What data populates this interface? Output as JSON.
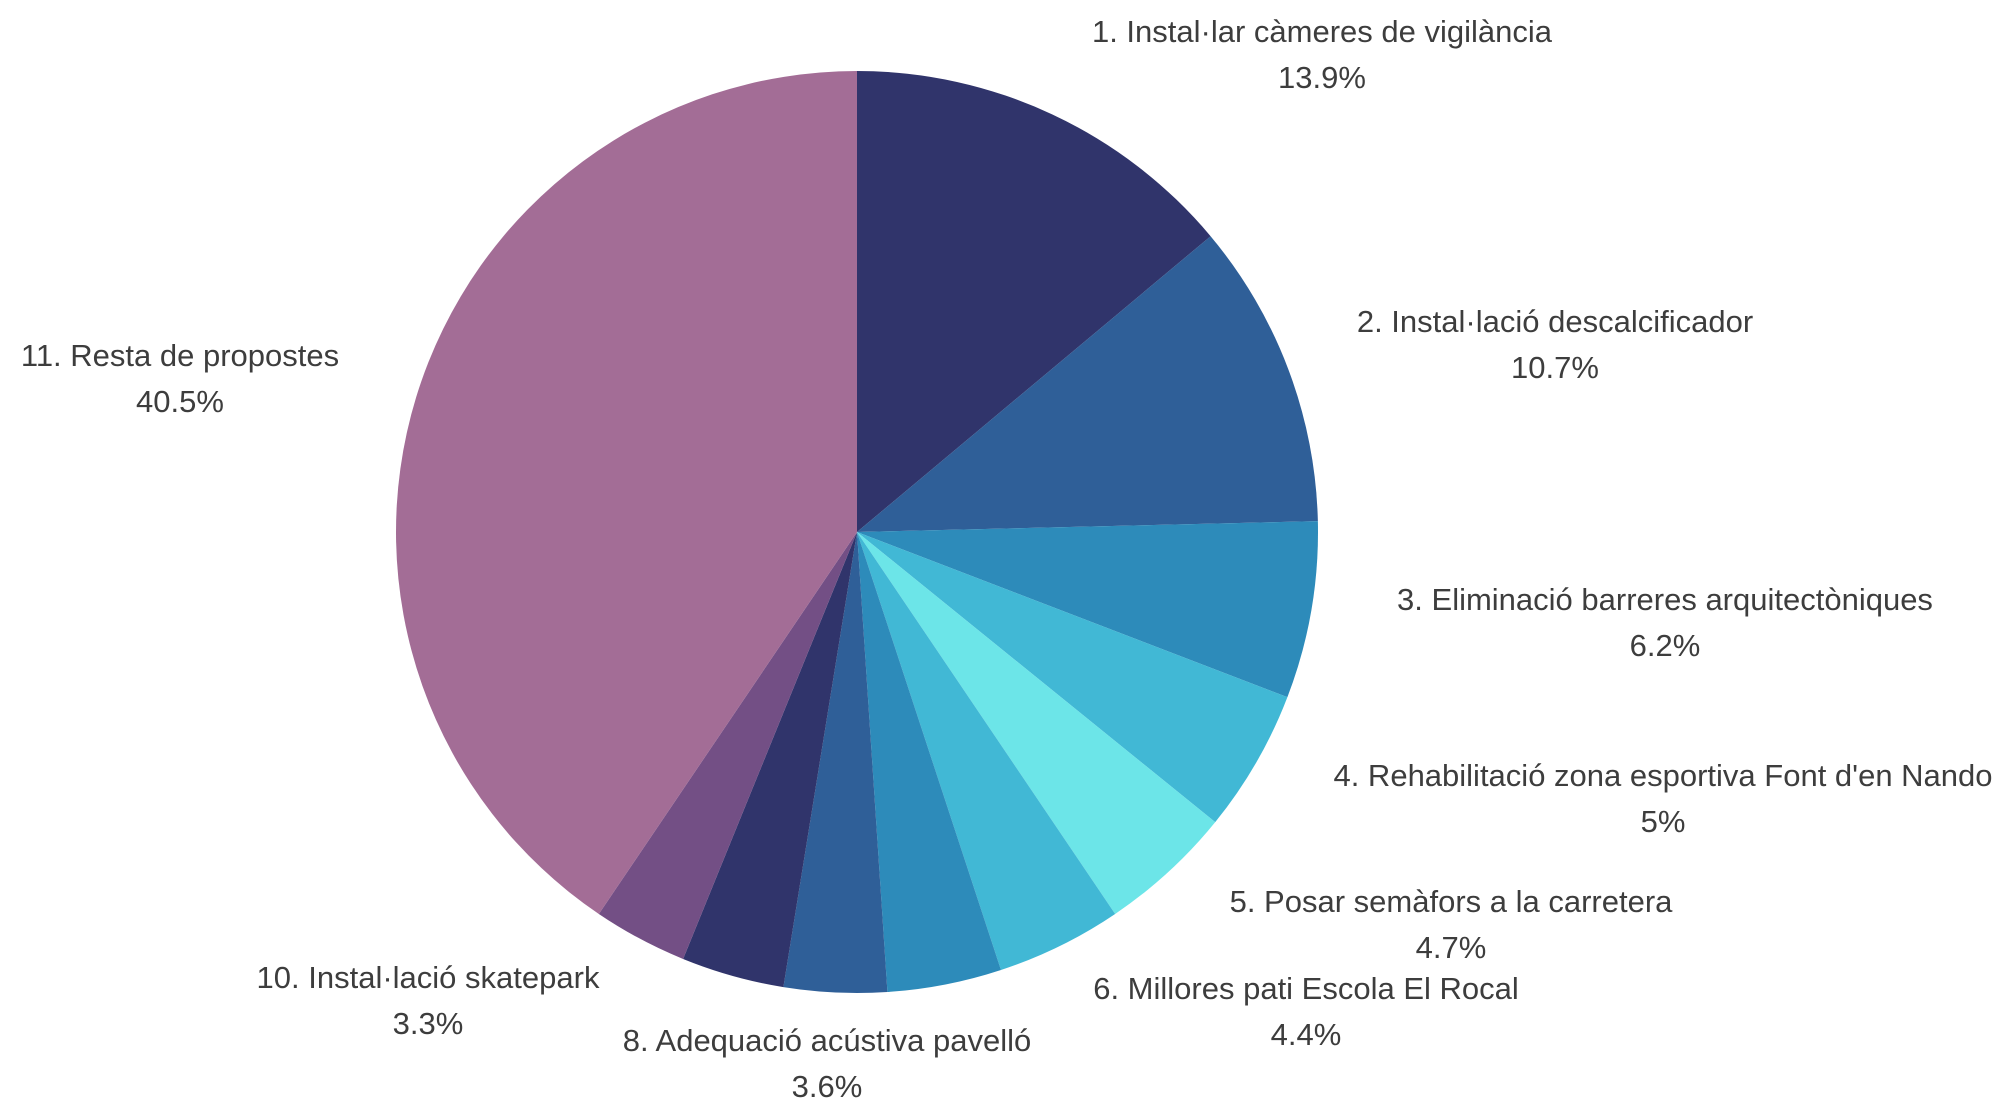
{
  "chart_data": {
    "type": "pie",
    "title": "",
    "start_angle_deg": 0,
    "direction": "clockwise",
    "slices": [
      {
        "name": "1. Instal·lar càmeres de vigilància",
        "value": 13.9,
        "label": "13.9%",
        "color": "#30346b"
      },
      {
        "name": "2. Instal·lació descalcificador",
        "value": 10.7,
        "label": "10.7%",
        "color": "#2f5f98"
      },
      {
        "name": "3. Eliminació barreres arquitectòniques",
        "value": 6.2,
        "label": "6.2%",
        "color": "#2d8bba"
      },
      {
        "name": "4. Rehabilitació zona esportiva Font d'en Nando",
        "value": 5.0,
        "label": "5%",
        "color": "#41b8d5"
      },
      {
        "name": "5. Posar semàfors a la carretera",
        "value": 4.7,
        "label": "4.7%",
        "color": "#6ce5e8"
      },
      {
        "name": "6. Millores pati Escola El Rocal",
        "value": 4.4,
        "label": "4.4%",
        "color": "#41b8d5"
      },
      {
        "name": "",
        "value": 4.0,
        "label": "",
        "color": "#2d8bba"
      },
      {
        "name": "8. Adequació acústiva pavelló",
        "value": 3.6,
        "label": "3.6%",
        "color": "#2f5f98"
      },
      {
        "name": "",
        "value": 3.6,
        "label": "",
        "color": "#30346b"
      },
      {
        "name": "10. Instal·lació skatepark",
        "value": 3.3,
        "label": "3.3%",
        "color": "#734f85"
      },
      {
        "name": "11. Resta de propostes",
        "value": 40.5,
        "label": "40.5%",
        "color": "#a36d96"
      }
    ]
  }
}
